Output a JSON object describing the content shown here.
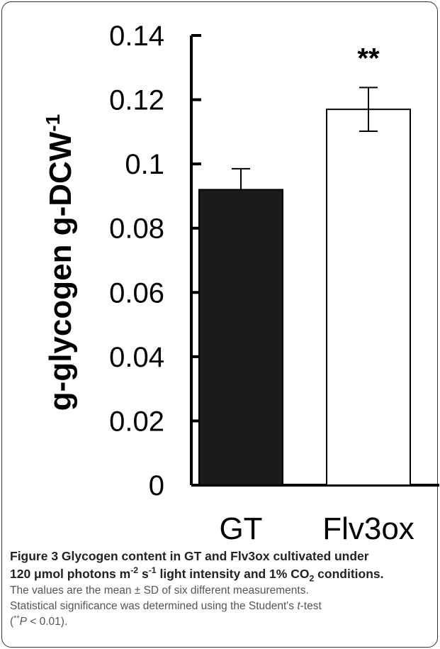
{
  "chart_data": {
    "type": "bar",
    "categories": [
      "GT",
      "Flv3ox"
    ],
    "values": [
      0.092,
      0.117
    ],
    "errors": [
      0.0065,
      0.0068
    ],
    "significance": [
      "",
      "**"
    ],
    "bar_colors": [
      "#1a1a1a",
      "#ffffff"
    ],
    "ylabel": "g-glycogen g-DCW",
    "ylabel_sup": "-1",
    "ylim": [
      0,
      0.14
    ],
    "yticks": [
      0,
      0.02,
      0.04,
      0.06,
      0.08,
      0.1,
      0.12,
      0.14
    ],
    "ytick_labels": [
      "0",
      "0.02",
      "0.04",
      "0.06",
      "0.08",
      "0.1",
      "0.12",
      "0.14"
    ],
    "grid": false
  },
  "caption": {
    "title_part1": "Figure 3 Glycogen content in GT and Flv3ox cultivated under",
    "title_part2a": "120 μmol photons m",
    "title_sup1": "-2",
    "title_part2b": " s",
    "title_sup2": "-1",
    "title_part2c": " light intensity and 1% CO",
    "title_sub": "2",
    "title_part2d": " conditions.",
    "body1": "The values are the mean ± SD of six different measurements.",
    "body2a": "Statistical significance was determined using the Student's ",
    "body2b": "t",
    "body2c": "-test",
    "body3a": "(",
    "body3sup": "**",
    "body3b": "P",
    "body3c": " < 0.01)."
  }
}
